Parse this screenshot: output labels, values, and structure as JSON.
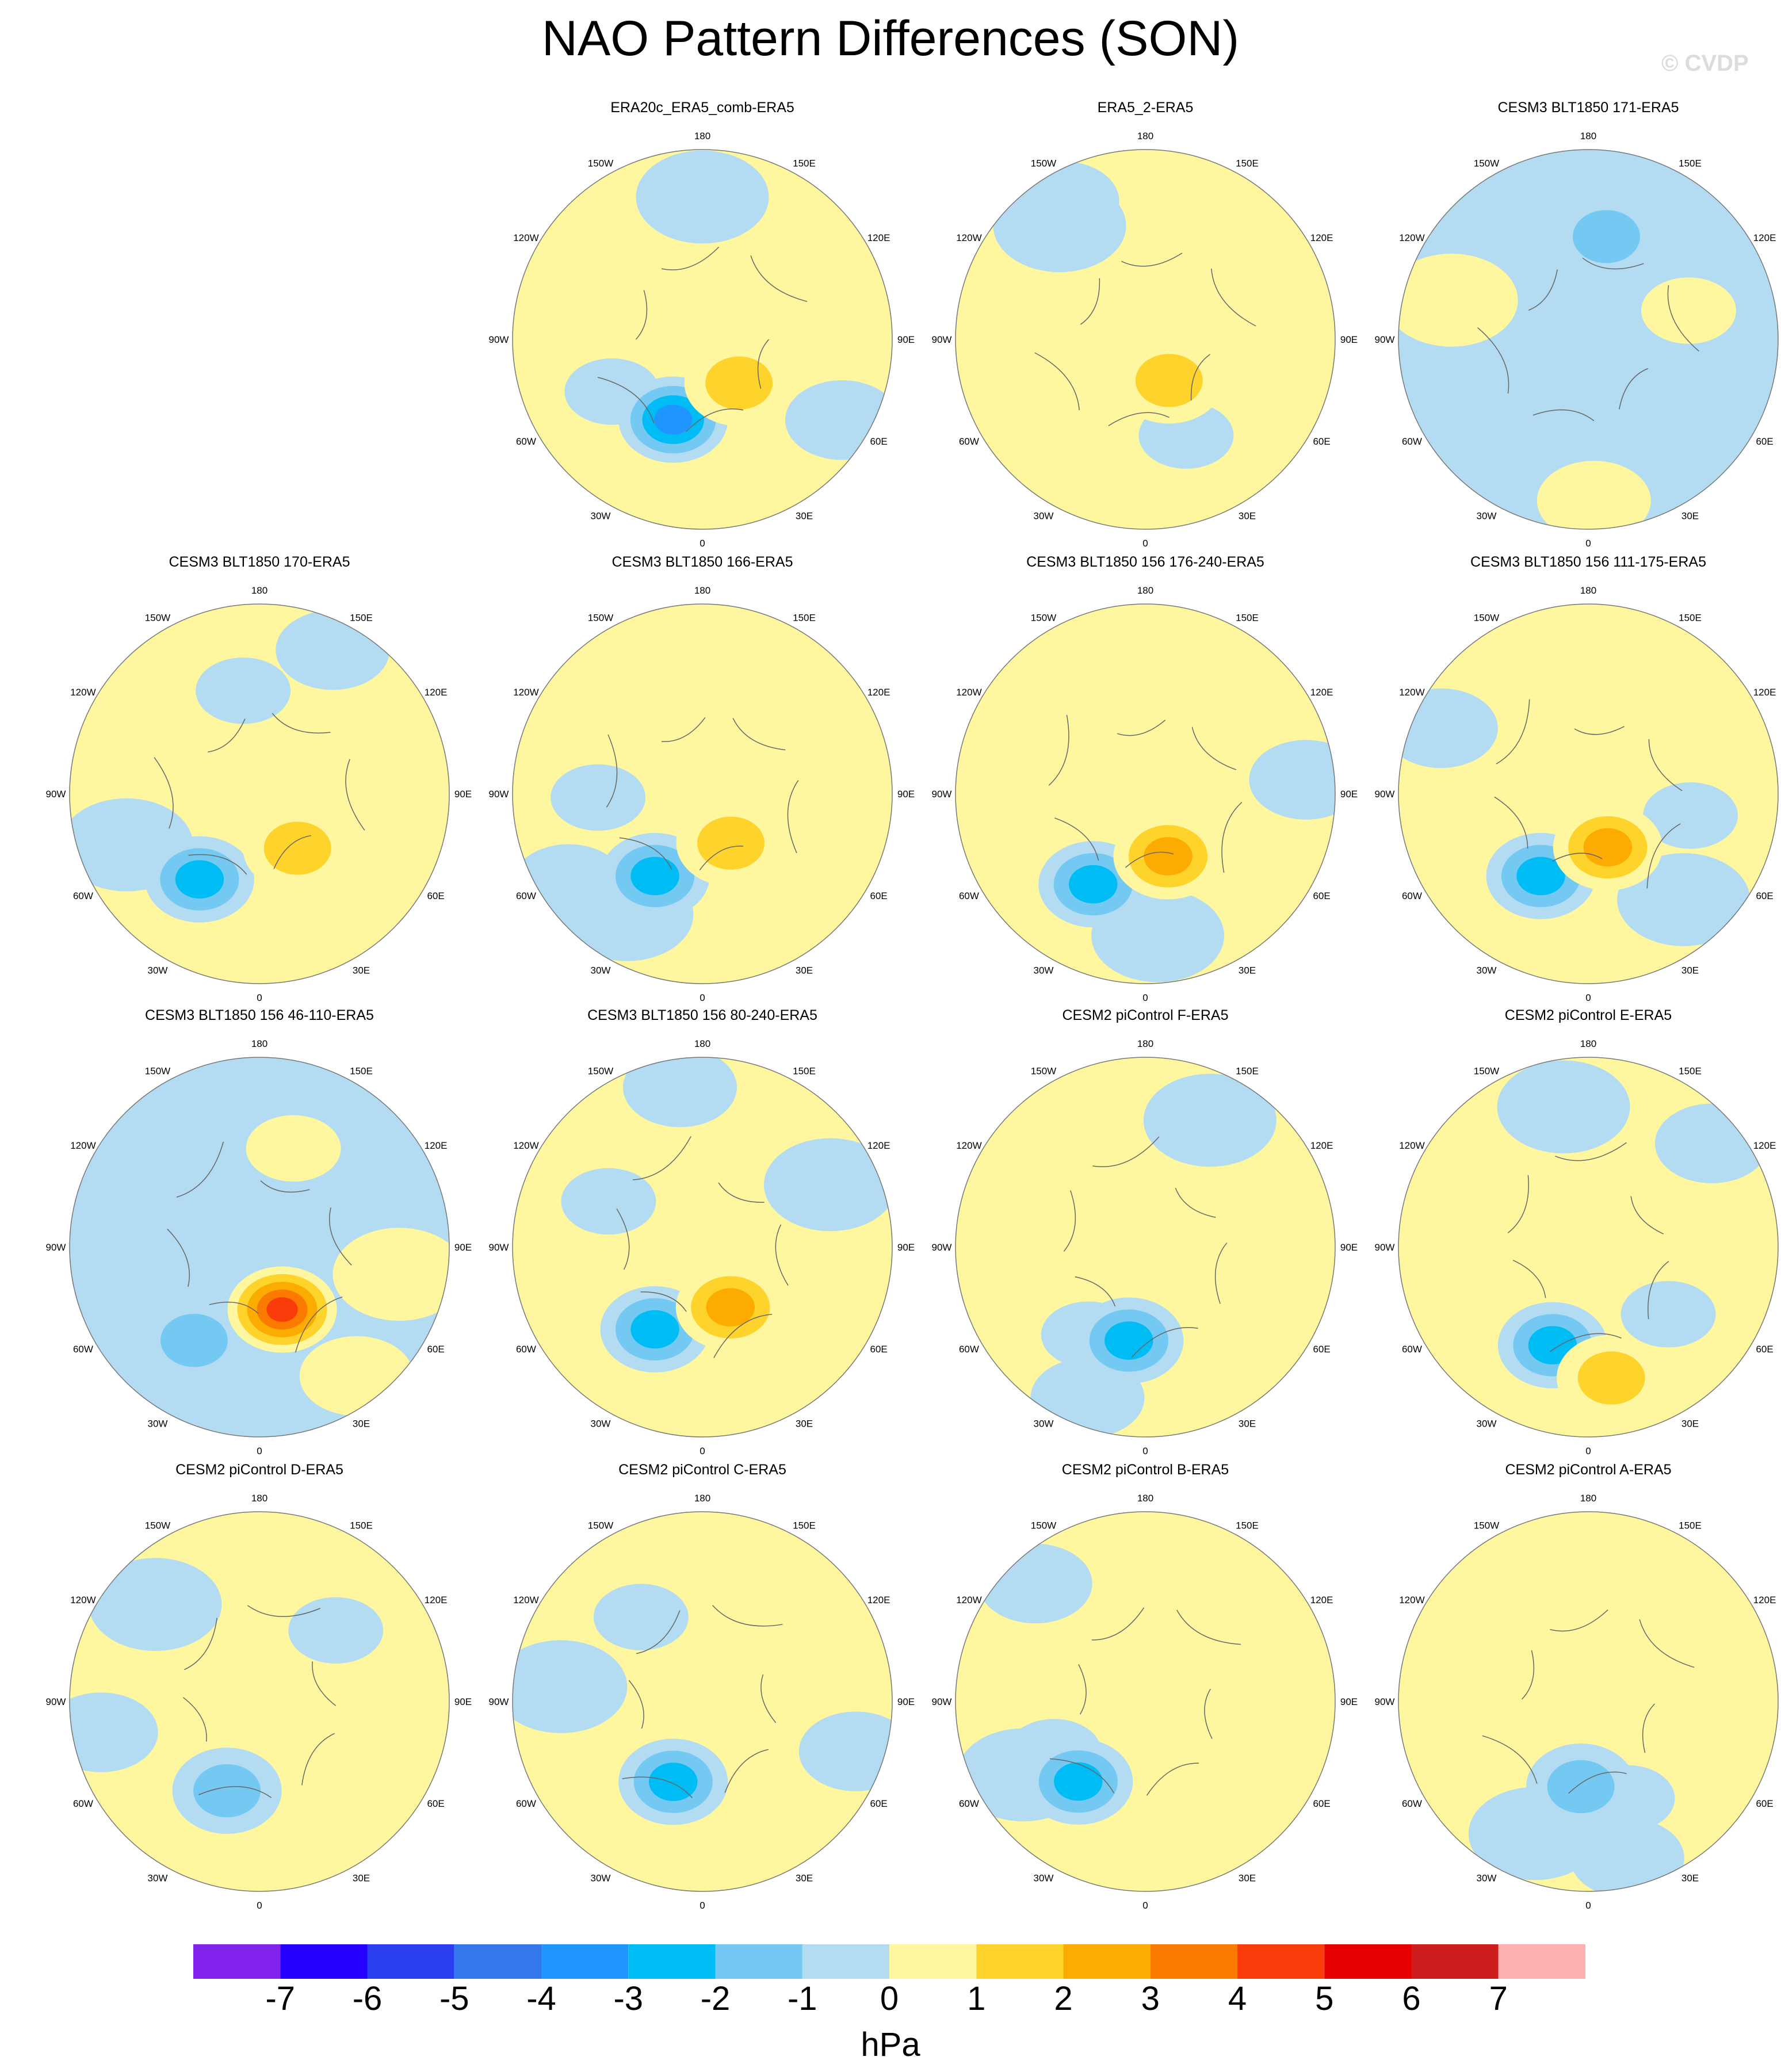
{
  "figure": {
    "title": "NAO Pattern Differences (SON)",
    "watermark": "© CVDP",
    "units": "hPa"
  },
  "grid_labels": {
    "top": "180",
    "bottom": "0",
    "upper_left": "150W",
    "upper_right": "150E",
    "mid_upper_left": "120W",
    "mid_upper_right": "120E",
    "left": "90W",
    "right": "90E",
    "mid_lower_left": "60W",
    "mid_lower_right": "60E",
    "lower_left": "30W",
    "lower_right": "30E"
  },
  "colors": {
    "ocean_blue_light": "#b3dcf2",
    "yellow_light": "#fff7a0",
    "background_neutral": "#fff7a0"
  },
  "panels": [
    {
      "title": "ERA20c_ERA5_comb-ERA5",
      "background": "yellow",
      "anomalies": [
        {
          "lon": -20,
          "r": 0.45,
          "val": -4
        },
        {
          "lon": 40,
          "r": 0.3,
          "val": 2
        }
      ]
    },
    {
      "title": "ERA5_2-ERA5",
      "background": "yellow",
      "anomalies": [
        {
          "lon": 30,
          "r": 0.25,
          "val": 2
        }
      ]
    },
    {
      "title": "CESM3 BLT1850 171-ERA5",
      "background": "blue",
      "anomalies": [
        {
          "lon": 170,
          "r": 0.55,
          "val": -2
        }
      ]
    },
    {
      "title": "CESM3 BLT1850 170-ERA5",
      "background": "yellow",
      "anomalies": [
        {
          "lon": -35,
          "r": 0.55,
          "val": -3
        },
        {
          "lon": 35,
          "r": 0.35,
          "val": 2
        }
      ]
    },
    {
      "title": "CESM3 BLT1850 166-ERA5",
      "background": "yellow",
      "anomalies": [
        {
          "lon": -30,
          "r": 0.5,
          "val": -3
        },
        {
          "lon": 30,
          "r": 0.3,
          "val": 2
        }
      ]
    },
    {
      "title": "CESM3 BLT1850 156 176-240-ERA5",
      "background": "yellow",
      "anomalies": [
        {
          "lon": -30,
          "r": 0.55,
          "val": -3
        },
        {
          "lon": 20,
          "r": 0.35,
          "val": 3
        }
      ]
    },
    {
      "title": "CESM3 BLT1850 156 111-175-ERA5",
      "background": "yellow",
      "anomalies": [
        {
          "lon": -30,
          "r": 0.5,
          "val": -3
        },
        {
          "lon": 20,
          "r": 0.3,
          "val": 3
        }
      ]
    },
    {
      "title": "CESM3 BLT1850 156 46-110-ERA5",
      "background": "blue",
      "anomalies": [
        {
          "lon": -35,
          "r": 0.6,
          "val": -2
        },
        {
          "lon": 20,
          "r": 0.35,
          "val": 5
        }
      ]
    },
    {
      "title": "CESM3 BLT1850 156 80-240-ERA5",
      "background": "yellow",
      "anomalies": [
        {
          "lon": -30,
          "r": 0.5,
          "val": -3
        },
        {
          "lon": 25,
          "r": 0.35,
          "val": 3
        }
      ]
    },
    {
      "title": "CESM2 piControl F-ERA5",
      "background": "yellow",
      "anomalies": [
        {
          "lon": -10,
          "r": 0.5,
          "val": -3
        }
      ]
    },
    {
      "title": "CESM2 piControl E-ERA5",
      "background": "yellow",
      "anomalies": [
        {
          "lon": -20,
          "r": 0.55,
          "val": -3
        },
        {
          "lon": 10,
          "r": 0.7,
          "val": 2
        }
      ]
    },
    {
      "title": "CESM2 piControl D-ERA5",
      "background": "yellow",
      "anomalies": [
        {
          "lon": -20,
          "r": 0.5,
          "val": -2
        }
      ]
    },
    {
      "title": "CESM2 piControl C-ERA5",
      "background": "yellow",
      "anomalies": [
        {
          "lon": -20,
          "r": 0.45,
          "val": -3
        }
      ]
    },
    {
      "title": "CESM2 piControl B-ERA5",
      "background": "yellow",
      "anomalies": [
        {
          "lon": -40,
          "r": 0.55,
          "val": -3
        }
      ]
    },
    {
      "title": "CESM2 piControl A-ERA5",
      "background": "yellow",
      "anomalies": [
        {
          "lon": -5,
          "r": 0.45,
          "val": -2
        }
      ]
    }
  ],
  "colorbar": {
    "colors": [
      "#8022ec",
      "#2500ff",
      "#2b3ff0",
      "#3578ec",
      "#1f96ff",
      "#00bcf5",
      "#73c9f1",
      "#b3dcf2",
      "#fff7a0",
      "#fed32c",
      "#fcac00",
      "#fb7b00",
      "#fa3c0b",
      "#e70000",
      "#ce1d1d",
      "#ffb1b1"
    ],
    "ticks": [
      "-7",
      "-6",
      "-5",
      "-4",
      "-3",
      "-2",
      "-1",
      "0",
      "1",
      "2",
      "3",
      "4",
      "5",
      "6",
      "7"
    ]
  }
}
